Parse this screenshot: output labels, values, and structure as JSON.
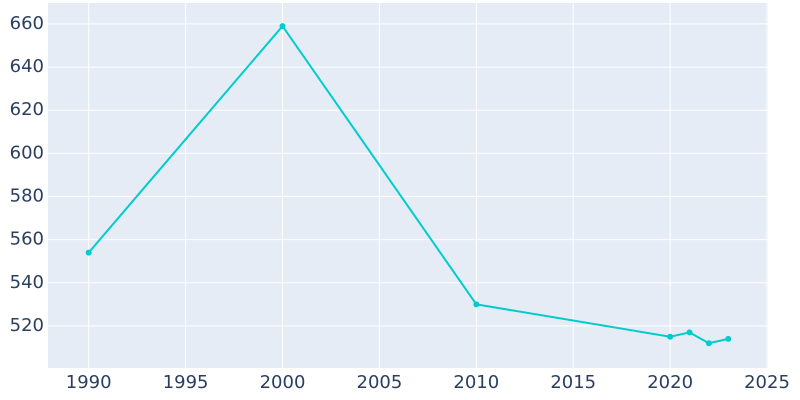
{
  "chart_data": {
    "type": "line",
    "x": [
      1990,
      2000,
      2010,
      2020,
      2021,
      2022,
      2023
    ],
    "series": [
      {
        "color": "#00cccc",
        "values": [
          554,
          659,
          530,
          515,
          517,
          512,
          514
        ]
      }
    ],
    "xlim": [
      1987.9,
      2025.05
    ],
    "xticks": [
      1990,
      1995,
      2000,
      2005,
      2010,
      2015,
      2020,
      2025
    ],
    "ylim": [
      500.5,
      669.7
    ],
    "yticks": [
      520,
      540,
      560,
      580,
      600,
      620,
      640,
      660
    ],
    "grid": true,
    "plot_background": "#e5ecf6"
  }
}
